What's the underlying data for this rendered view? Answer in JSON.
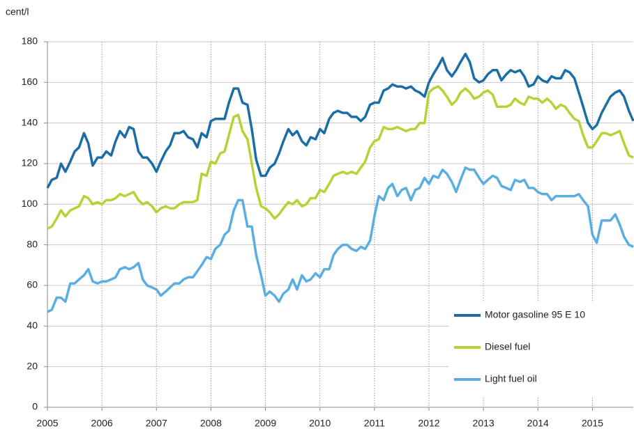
{
  "chart_data": {
    "type": "line",
    "y_label": "cent/l",
    "x": [
      2005,
      2005.08,
      2005.17,
      2005.25,
      2005.33,
      2005.42,
      2005.5,
      2005.58,
      2005.67,
      2005.75,
      2005.83,
      2005.92,
      2006,
      2006.08,
      2006.17,
      2006.25,
      2006.33,
      2006.42,
      2006.5,
      2006.58,
      2006.67,
      2006.75,
      2006.83,
      2006.92,
      2007,
      2007.08,
      2007.17,
      2007.25,
      2007.33,
      2007.42,
      2007.5,
      2007.58,
      2007.67,
      2007.75,
      2007.83,
      2007.92,
      2008,
      2008.08,
      2008.17,
      2008.25,
      2008.33,
      2008.42,
      2008.5,
      2008.58,
      2008.67,
      2008.75,
      2008.83,
      2008.92,
      2009,
      2009.08,
      2009.17,
      2009.25,
      2009.33,
      2009.42,
      2009.5,
      2009.58,
      2009.67,
      2009.75,
      2009.83,
      2009.92,
      2010,
      2010.08,
      2010.17,
      2010.25,
      2010.33,
      2010.42,
      2010.5,
      2010.58,
      2010.67,
      2010.75,
      2010.83,
      2010.92,
      2011,
      2011.08,
      2011.17,
      2011.25,
      2011.33,
      2011.42,
      2011.5,
      2011.58,
      2011.67,
      2011.75,
      2011.83,
      2011.92,
      2012,
      2012.08,
      2012.17,
      2012.25,
      2012.33,
      2012.42,
      2012.5,
      2012.58,
      2012.67,
      2012.75,
      2012.83,
      2012.92,
      2013,
      2013.08,
      2013.17,
      2013.25,
      2013.33,
      2013.42,
      2013.5,
      2013.58,
      2013.67,
      2013.75,
      2013.83,
      2013.92,
      2014,
      2014.08,
      2014.17,
      2014.25,
      2014.33,
      2014.42,
      2014.5,
      2014.58,
      2014.67,
      2014.75,
      2014.83,
      2014.92,
      2015,
      2015.08,
      2015.17,
      2015.25,
      2015.33,
      2015.42,
      2015.5,
      2015.58,
      2015.67,
      2015.75
    ],
    "series": [
      {
        "name": "Motor gasoline 95 E 10",
        "color": "#1b6da6",
        "values": [
          108,
          112,
          113,
          120,
          116,
          121,
          126,
          128,
          135,
          130,
          119,
          123,
          123,
          126,
          124,
          131,
          136,
          133,
          138,
          137,
          126,
          123,
          123,
          120,
          116,
          121,
          126,
          129,
          135,
          135,
          136,
          133,
          132,
          128,
          135,
          133,
          141,
          142,
          142,
          142,
          150,
          157,
          157,
          150,
          149,
          137,
          122,
          114,
          114,
          118,
          120,
          125,
          131,
          137,
          134,
          136,
          131,
          129,
          133,
          132,
          137,
          135,
          142,
          145,
          146,
          145,
          145,
          143,
          143,
          141,
          143,
          149,
          150,
          150,
          156,
          157,
          159,
          158,
          158,
          157,
          158,
          156,
          155,
          153,
          160,
          164,
          168,
          172,
          166,
          163,
          166,
          170,
          174,
          170,
          162,
          160,
          161,
          164,
          166,
          166,
          161,
          164,
          166,
          165,
          166,
          163,
          158,
          159,
          163,
          161,
          160,
          163,
          162,
          162,
          166,
          165,
          162,
          155,
          148,
          140,
          137,
          139,
          145,
          149,
          153,
          155,
          156,
          153,
          146,
          141
        ]
      },
      {
        "name": "Diesel fuel",
        "color": "#b4d335",
        "values": [
          88,
          89,
          93,
          97,
          94,
          97,
          98,
          99,
          104,
          103,
          100,
          101,
          100,
          102,
          102,
          103,
          105,
          104,
          105,
          106,
          102,
          100,
          101,
          99,
          96,
          98,
          99,
          98,
          98,
          100,
          101,
          101,
          101,
          102,
          115,
          114,
          121,
          120,
          125,
          126,
          134,
          143,
          144,
          136,
          132,
          120,
          108,
          99,
          98,
          96,
          93,
          95,
          98,
          101,
          100,
          102,
          99,
          100,
          103,
          103,
          107,
          106,
          110,
          114,
          115,
          116,
          115,
          116,
          115,
          118,
          121,
          128,
          131,
          132,
          138,
          137,
          137,
          138,
          137,
          136,
          137,
          137,
          140,
          140,
          155,
          157,
          158,
          156,
          153,
          149,
          151,
          155,
          157,
          155,
          152,
          153,
          155,
          156,
          154,
          148,
          148,
          148,
          149,
          152,
          150,
          149,
          153,
          152,
          152,
          150,
          152,
          150,
          147,
          149,
          148,
          145,
          142,
          141,
          134,
          128,
          128,
          131,
          135,
          135,
          134,
          135,
          136,
          130,
          124,
          123
        ]
      },
      {
        "name": "Light fuel oil",
        "color": "#5aaee2",
        "values": [
          47,
          48,
          54,
          54,
          52,
          61,
          61,
          63,
          65,
          68,
          62,
          61,
          62,
          62,
          63,
          64,
          68,
          69,
          68,
          69,
          71,
          63,
          60,
          59,
          58,
          55,
          57,
          59,
          61,
          61,
          63,
          64,
          64,
          67,
          70,
          74,
          73,
          78,
          80,
          85,
          87,
          97,
          102,
          102,
          89,
          89,
          75,
          65,
          55,
          57,
          55,
          52,
          56,
          58,
          63,
          58,
          65,
          62,
          63,
          66,
          64,
          68,
          68,
          75,
          78,
          80,
          80,
          78,
          77,
          79,
          78,
          82,
          94,
          104,
          102,
          108,
          110,
          104,
          107,
          108,
          102,
          107,
          108,
          113,
          110,
          114,
          113,
          117,
          115,
          111,
          106,
          112,
          118,
          117,
          117,
          113,
          110,
          112,
          114,
          113,
          109,
          108,
          107,
          112,
          111,
          112,
          108,
          108,
          106,
          105,
          105,
          102,
          104,
          104,
          104,
          104,
          104,
          105,
          102,
          99,
          85,
          81,
          92,
          92,
          92,
          95,
          90,
          84,
          80,
          79
        ]
      }
    ],
    "xlim": [
      2005,
      2015.75
    ],
    "xticks": [
      2005,
      2006,
      2007,
      2008,
      2009,
      2010,
      2011,
      2012,
      2013,
      2014,
      2015
    ],
    "ylim": [
      0,
      180
    ],
    "yticks": [
      0,
      20,
      40,
      60,
      80,
      100,
      120,
      140,
      160,
      180
    ],
    "grid": true,
    "legend": "lower right"
  }
}
